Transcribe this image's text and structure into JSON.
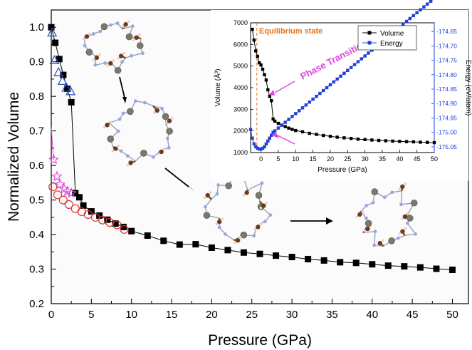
{
  "chart_data": [
    {
      "type": "scatter",
      "xlabel": "Pressure (GPa)",
      "ylabel": "Normalized Volume",
      "xlim": [
        0,
        52
      ],
      "ylim": [
        0.2,
        1.05
      ],
      "xticks": [
        "0",
        "5",
        "10",
        "15",
        "20",
        "25",
        "30",
        "35",
        "40",
        "45",
        "50"
      ],
      "yticks": [
        "0.2",
        "0.3",
        "0.4",
        "0.5",
        "0.6",
        "0.7",
        "0.8",
        "0.9",
        "1.0"
      ],
      "grid": false,
      "series": [
        {
          "marker": "square-filled",
          "color": "#000000",
          "line": true,
          "x": [
            0,
            0.5,
            1,
            1.5,
            2,
            2.5,
            3,
            3.5,
            4,
            5,
            6,
            7,
            8,
            9,
            10,
            12,
            14,
            16,
            18,
            20,
            22,
            24,
            26,
            28,
            30,
            32,
            34,
            36,
            38,
            40,
            42,
            44,
            46,
            48,
            50
          ],
          "y": [
            1.0,
            0.955,
            0.908,
            0.862,
            0.822,
            0.783,
            0.52,
            0.508,
            0.484,
            0.467,
            0.455,
            0.443,
            0.432,
            0.422,
            0.41,
            0.397,
            0.382,
            0.371,
            0.372,
            0.362,
            0.355,
            0.348,
            0.344,
            0.339,
            0.335,
            0.329,
            0.325,
            0.32,
            0.318,
            0.314,
            0.31,
            0.308,
            0.305,
            0.301,
            0.298
          ]
        },
        {
          "marker": "triangle-open",
          "color": "#2a4db8",
          "line": false,
          "x": [
            0.1,
            0.4,
            0.9,
            1.4,
            1.9,
            2.4
          ],
          "y": [
            0.985,
            0.905,
            0.87,
            0.845,
            0.825,
            0.815
          ]
        },
        {
          "marker": "star-open",
          "color": "#e040e0",
          "line": false,
          "x": [
            0.3,
            0.7,
            1.1,
            1.6,
            2.0,
            2.5
          ],
          "y": [
            0.617,
            0.568,
            0.545,
            0.532,
            0.525,
            0.52
          ]
        },
        {
          "marker": "circle-open",
          "color": "#e03030",
          "line": false,
          "x": [
            0.2,
            0.8,
            1.5,
            2.2,
            3.0,
            3.8,
            4.6,
            5.5,
            6.4,
            7.3,
            8.2,
            9.1
          ],
          "y": [
            0.538,
            0.515,
            0.5,
            0.487,
            0.475,
            0.466,
            0.458,
            0.45,
            0.442,
            0.435,
            0.428,
            0.415
          ]
        },
        {
          "marker": "none",
          "color": "#e040e0",
          "line": true,
          "x": [
            0,
            0.15,
            0.3
          ],
          "y": [
            0.71,
            0.66,
            0.617
          ]
        }
      ]
    },
    {
      "type": "line",
      "xlabel": "Pressure (GPa)",
      "ylabel": "Volume (Å³)",
      "ylabel2": "Energy (eV/atom)",
      "xlim": [
        -3,
        50
      ],
      "ylim": [
        1000,
        7000
      ],
      "ylim2": [
        -175.07,
        -174.62
      ],
      "xticks": [
        "0",
        "5",
        "10",
        "15",
        "20",
        "25",
        "30",
        "35",
        "40",
        "45",
        "50"
      ],
      "yticks": [
        "1000",
        "2000",
        "3000",
        "4000",
        "5000",
        "6000",
        "7000"
      ],
      "yticks2": [
        "-174.65",
        "-174.70",
        "-174.75",
        "-174.80",
        "-174.85",
        "-174.90",
        "-174.95",
        "-175.00",
        "-175.05"
      ],
      "legend_position": "top-right",
      "series": [
        {
          "name": "Volume",
          "color": "#000000",
          "axis": "left",
          "x": [
            -2.5,
            -2,
            -1.5,
            -1,
            -0.5,
            0,
            0.5,
            1,
            1.5,
            2,
            2.5,
            3,
            3.5,
            4,
            5,
            6,
            7,
            8,
            9,
            10,
            12,
            14,
            16,
            18,
            20,
            22,
            24,
            26,
            28,
            30,
            32,
            34,
            36,
            38,
            40,
            42,
            44,
            46,
            48,
            50
          ],
          "y": [
            6700,
            6200,
            5700,
            5450,
            5150,
            5050,
            4850,
            4600,
            4350,
            3900,
            3600,
            3400,
            2550,
            2450,
            2350,
            2270,
            2200,
            2130,
            2070,
            2020,
            1960,
            1890,
            1840,
            1790,
            1750,
            1710,
            1680,
            1650,
            1620,
            1600,
            1580,
            1560,
            1545,
            1530,
            1515,
            1505,
            1495,
            1480,
            1470,
            1460
          ]
        },
        {
          "name": "Energy",
          "color": "#1f3fd6",
          "axis": "right",
          "x": [
            -3,
            -2.5,
            -2,
            -1.5,
            -1,
            -0.5,
            0,
            0.5,
            1,
            1.5,
            2,
            2.5,
            3,
            3.5,
            4,
            5,
            6,
            7,
            8,
            9,
            10,
            11,
            12,
            13,
            14,
            15,
            16,
            17,
            18,
            19,
            20,
            21,
            22,
            23,
            24,
            25,
            26,
            27,
            28,
            29,
            30,
            31,
            32,
            33,
            34,
            35,
            36,
            37,
            38,
            39,
            40,
            41,
            42,
            43,
            44,
            45,
            46,
            47,
            48,
            49,
            50
          ],
          "y": [
            -174.99,
            -175.02,
            -175.04,
            -175.05,
            -175.055,
            -175.058,
            -175.058,
            -175.055,
            -175.05,
            -175.04,
            -175.03,
            -175.02,
            -175.01,
            -175.0,
            -174.995,
            -174.985,
            -174.975,
            -174.965,
            -174.955,
            -174.945,
            -174.935,
            -174.925,
            -174.915,
            -174.905,
            -174.895,
            -174.885,
            -174.875,
            -174.865,
            -174.855,
            -174.845,
            -174.835,
            -174.825,
            -174.815,
            -174.805,
            -174.795,
            -174.785,
            -174.775,
            -174.765,
            -174.755,
            -174.745,
            -174.735,
            -174.725,
            -174.715,
            -174.705,
            -174.695,
            -174.685,
            -174.675,
            -174.665,
            -174.655,
            -174.645,
            -174.635,
            -174.625,
            -174.615,
            -174.605,
            -174.595,
            -174.585,
            -174.575,
            -174.565,
            -174.555,
            -174.545,
            -174.535
          ]
        }
      ],
      "annotations": {
        "equilibrium": "Equilibrium state",
        "transition": "Phase Transition"
      }
    }
  ]
}
